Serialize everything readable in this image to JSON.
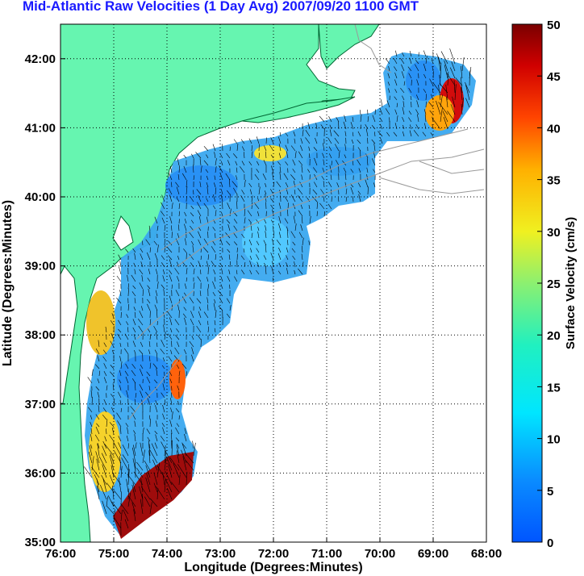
{
  "title": "Mid-Atlantic Raw Velocities (1 Day Avg) 2007/09/20 1100 GMT",
  "map": {
    "xlabel": "Longitude (Degrees:Minutes)",
    "ylabel": "Latitude (Degrees:Minutes)",
    "lon_range": [
      -76,
      -68
    ],
    "lat_range": [
      35,
      42.5
    ],
    "x_ticks": [
      "76:00",
      "75:00",
      "74:00",
      "73:00",
      "72:00",
      "71:00",
      "70:00",
      "69:00",
      "68:00"
    ],
    "y_ticks": [
      "35:00",
      "36:00",
      "37:00",
      "38:00",
      "39:00",
      "40:00",
      "41:00",
      "42:00"
    ],
    "grid": "dotted",
    "land_color": "#66f5b0",
    "coast_color": "#006633",
    "bathymetry_color": "#999999"
  },
  "colorbar": {
    "label": "Surface Velocity (cm/s)",
    "ticks": [
      "0",
      "5",
      "10",
      "15",
      "20",
      "25",
      "30",
      "35",
      "40",
      "45",
      "50"
    ],
    "range": [
      0,
      50
    ],
    "colormap": "jet"
  }
}
